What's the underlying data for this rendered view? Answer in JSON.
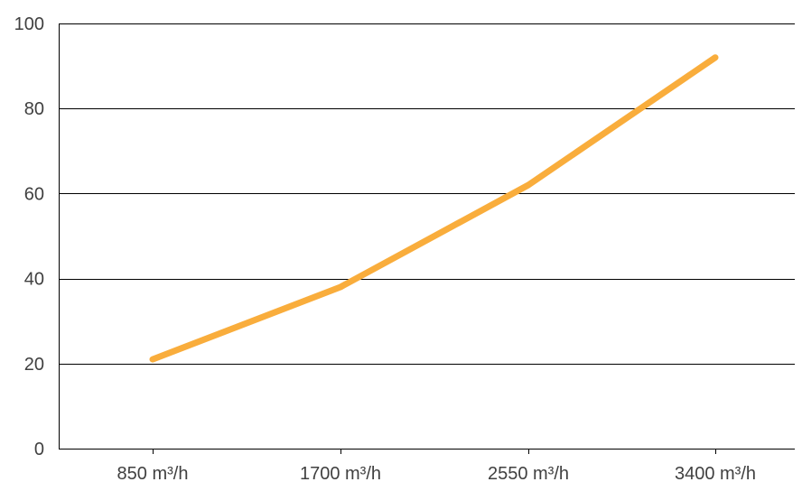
{
  "chart_data": {
    "type": "line",
    "title": "",
    "xlabel": "",
    "ylabel": "",
    "categories": [
      "850 m³/h",
      "1700 m³/h",
      "2550 m³/h",
      "3400 m³/h"
    ],
    "series": [
      {
        "values": [
          21,
          38,
          62,
          92
        ],
        "color": "#F9AD3C"
      }
    ],
    "ylim": [
      0,
      100
    ],
    "yticks": [
      0,
      20,
      40,
      60,
      80,
      100
    ],
    "grid": true,
    "legend": "none"
  }
}
